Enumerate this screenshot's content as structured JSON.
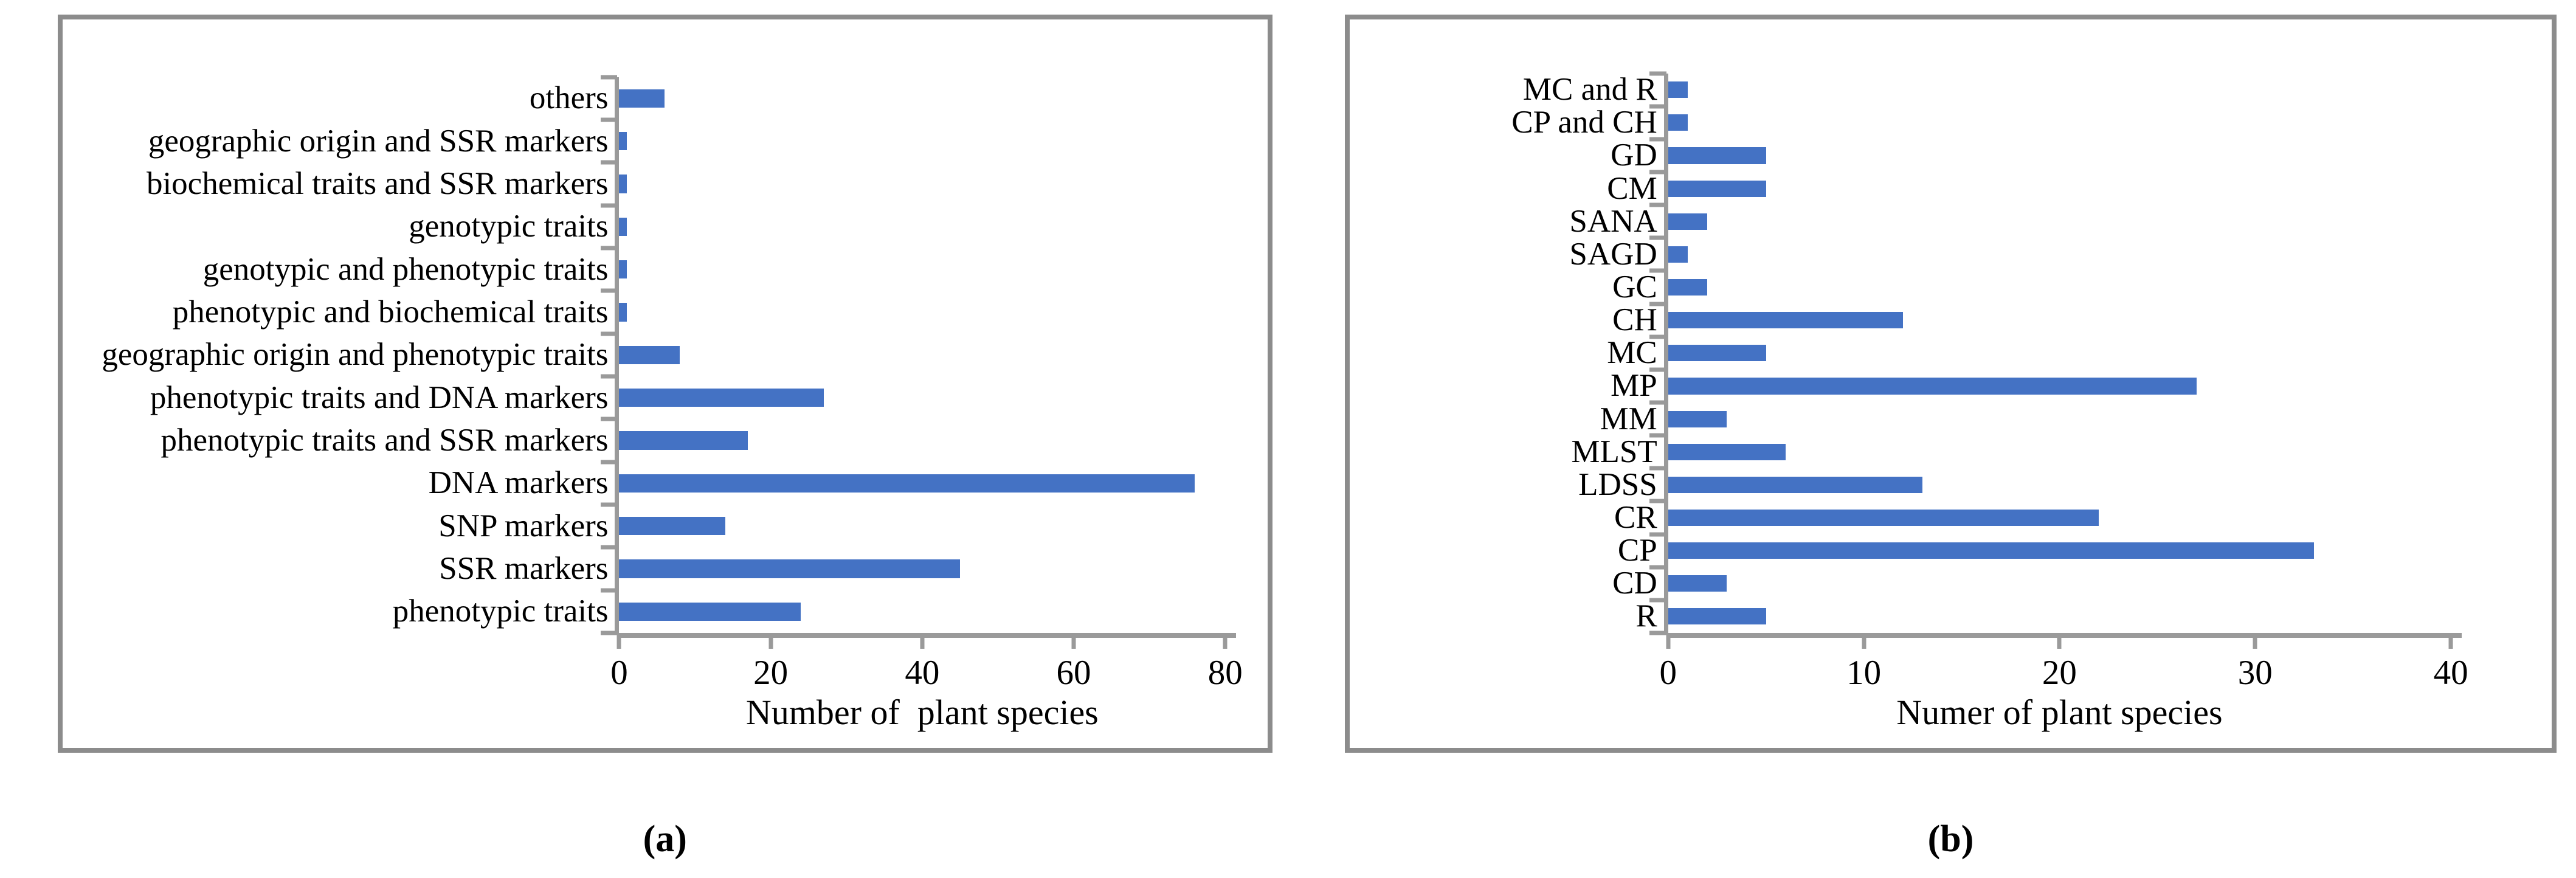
{
  "figure": {
    "background": "#ffffff",
    "description": "Two-panel horizontal bar figure"
  },
  "colors": {
    "bar": "#4472c4",
    "axis": "#9a9a9a",
    "panel_border": "#8c8c8c",
    "text": "#000000"
  },
  "captions": [
    "(a)",
    "(b)"
  ],
  "chart_data": [
    {
      "type": "bar",
      "orientation": "horizontal",
      "panel": "a",
      "title": "",
      "categories": [
        "others",
        "geographic origin and SSR markers",
        "biochemical traits and SSR markers",
        "genotypic traits",
        "genotypic and phenotypic traits",
        "phenotypic and biochemical traits",
        "geographic origin and phenotypic traits",
        "phenotypic traits and DNA markers",
        "phenotypic traits and SSR markers",
        "DNA markers",
        "SNP markers",
        "SSR markers",
        "phenotypic traits"
      ],
      "values": [
        6,
        1,
        1,
        1,
        1,
        1,
        8,
        27,
        17,
        76,
        14,
        45,
        24
      ],
      "xlabel": "Number of  plant species",
      "ylabel": "",
      "xlim": [
        0,
        80
      ],
      "x_ticks": [
        0,
        20,
        40,
        60,
        80
      ],
      "grid": false,
      "legend": false,
      "bar_color": "#4472c4"
    },
    {
      "type": "bar",
      "orientation": "horizontal",
      "panel": "b",
      "title": "",
      "categories": [
        "MC and R",
        "CP and CH",
        "GD",
        "CM",
        "SANA",
        "SAGD",
        "GC",
        "CH",
        "MC",
        "MP",
        "MM",
        "MLST",
        "LDSS",
        "CR",
        "CP",
        "CD",
        "R"
      ],
      "values": [
        1,
        1,
        5,
        5,
        2,
        1,
        2,
        12,
        5,
        27,
        3,
        6,
        13,
        22,
        33,
        3,
        5
      ],
      "xlabel": "Numer of plant species",
      "ylabel": "",
      "xlim": [
        0,
        40
      ],
      "x_ticks": [
        0,
        10,
        20,
        30,
        40
      ],
      "grid": false,
      "legend": false,
      "bar_color": "#4472c4"
    }
  ]
}
